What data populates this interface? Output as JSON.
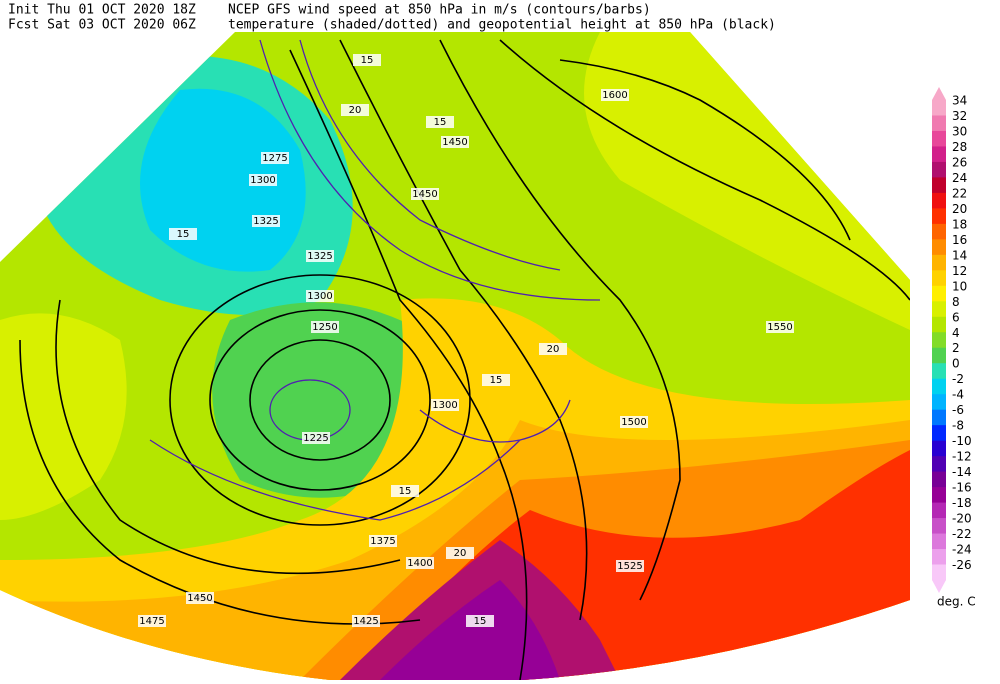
{
  "header": {
    "init": "Init  Thu 01 OCT 2020 18Z",
    "fcst": "Fcst Sat 03 OCT 2020 06Z",
    "line1": "NCEP GFS wind speed at 850 hPa in m/s (contours/barbs)",
    "line2": "temperature (shaded/dotted) and geopotential height at 850 hPa (black)"
  },
  "colorbar": {
    "ticks": [
      34,
      32,
      30,
      28,
      26,
      24,
      22,
      20,
      18,
      16,
      14,
      12,
      10,
      8,
      6,
      4,
      2,
      0,
      -2,
      -4,
      -6,
      -8,
      -10,
      -12,
      -14,
      -16,
      -18,
      -20,
      -22,
      -24,
      -26
    ],
    "colors": [
      "#f7a8c8",
      "#f07ab0",
      "#e8489a",
      "#d2208a",
      "#b0106e",
      "#c0002c",
      "#f01010",
      "#ff3000",
      "#ff6400",
      "#ff8c00",
      "#ffb400",
      "#ffd200",
      "#ffef00",
      "#d8f000",
      "#b4e600",
      "#82dc28",
      "#50d250",
      "#28e0b4",
      "#00d2f0",
      "#00b4ff",
      "#0078ff",
      "#0028ff",
      "#2800d2",
      "#5000b4",
      "#780096",
      "#960096",
      "#b428b4",
      "#c850c8",
      "#dc78dc",
      "#eca0ec",
      "#f8c8f8"
    ],
    "unit": "deg. C"
  },
  "map": {
    "labels": [
      "1600",
      "1450",
      "1275",
      "1300",
      "1325",
      "1325",
      "1300",
      "1250",
      "1225",
      "1300",
      "1375",
      "1400",
      "1425",
      "1450",
      "1475",
      "1500",
      "1525",
      "1550",
      "1450",
      "15",
      "20",
      "15",
      "15",
      "20",
      "15",
      "15",
      "20",
      "15"
    ]
  }
}
